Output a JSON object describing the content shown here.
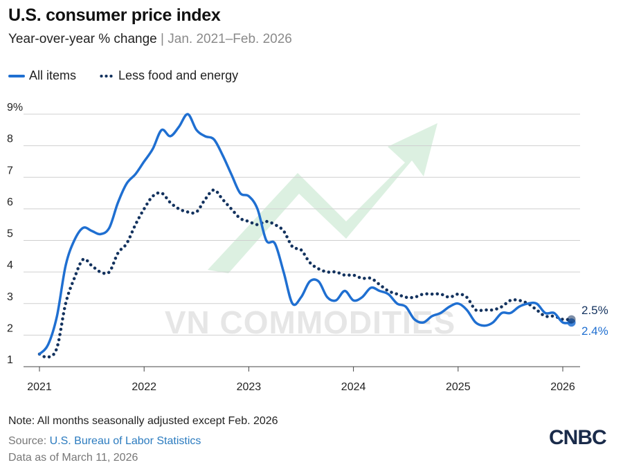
{
  "header": {
    "title": "U.S. consumer price index",
    "subtitle_main": "Year-over-year % change",
    "subtitle_sep": " | ",
    "subtitle_range": "Jan. 2021–Feb. 2026"
  },
  "footer": {
    "note": "Note: All months seasonally adjusted except Feb. 2026",
    "source_label": "Source: ",
    "source_link": "U.S. Bureau of Labor Statistics",
    "as_of": "Data as of March 11, 2026",
    "logo_text": "CNBC"
  },
  "watermark": {
    "text": "VN COMMODITIES"
  },
  "chart_data": {
    "type": "line",
    "title": "U.S. consumer price index",
    "xlabel": "",
    "ylabel": "",
    "ylim": [
      1,
      9
    ],
    "xlim": [
      2021.0,
      2026.2
    ],
    "y_ticks": [
      1,
      2,
      3,
      4,
      5,
      6,
      7,
      8,
      9
    ],
    "y_tick_labels": [
      "1",
      "2",
      "3",
      "4",
      "5",
      "6",
      "7",
      "8",
      "9%"
    ],
    "x_ticks": [
      2021,
      2022,
      2023,
      2024,
      2025,
      2026
    ],
    "x_tick_labels": [
      "2021",
      "2022",
      "2023",
      "2024",
      "2025",
      "2026"
    ],
    "legend_position": "top-left",
    "grid": "horizontal",
    "series": [
      {
        "name": "All items",
        "style": "solid",
        "color": "#1f6fd1",
        "end_label": "2.4%",
        "x": [
          2021.0,
          2021.083,
          2021.167,
          2021.25,
          2021.333,
          2021.417,
          2021.5,
          2021.583,
          2021.667,
          2021.75,
          2021.833,
          2021.917,
          2022.0,
          2022.083,
          2022.167,
          2022.25,
          2022.333,
          2022.417,
          2022.5,
          2022.583,
          2022.667,
          2022.75,
          2022.833,
          2022.917,
          2023.0,
          2023.083,
          2023.167,
          2023.25,
          2023.333,
          2023.417,
          2023.5,
          2023.583,
          2023.667,
          2023.75,
          2023.833,
          2023.917,
          2024.0,
          2024.083,
          2024.167,
          2024.25,
          2024.333,
          2024.417,
          2024.5,
          2024.583,
          2024.667,
          2024.75,
          2024.833,
          2024.917,
          2025.0,
          2025.083,
          2025.167,
          2025.25,
          2025.333,
          2025.417,
          2025.5,
          2025.583,
          2025.667,
          2025.75,
          2025.833,
          2025.917,
          2026.0,
          2026.083
        ],
        "values": [
          1.4,
          1.7,
          2.6,
          4.2,
          5.0,
          5.4,
          5.3,
          5.2,
          5.4,
          6.2,
          6.8,
          7.1,
          7.5,
          7.9,
          8.5,
          8.3,
          8.6,
          9.0,
          8.5,
          8.3,
          8.2,
          7.7,
          7.1,
          6.5,
          6.4,
          6.0,
          5.0,
          4.9,
          4.0,
          3.0,
          3.2,
          3.7,
          3.7,
          3.2,
          3.1,
          3.4,
          3.1,
          3.2,
          3.5,
          3.4,
          3.3,
          3.0,
          2.9,
          2.5,
          2.4,
          2.6,
          2.7,
          2.9,
          3.0,
          2.8,
          2.4,
          2.3,
          2.4,
          2.7,
          2.7,
          2.9,
          3.0,
          3.0,
          2.7,
          2.7,
          2.4,
          2.4
        ]
      },
      {
        "name": "Less food and energy",
        "style": "dotted",
        "color": "#13325e",
        "end_label": "2.5%",
        "x": [
          2021.0,
          2021.083,
          2021.167,
          2021.25,
          2021.333,
          2021.417,
          2021.5,
          2021.583,
          2021.667,
          2021.75,
          2021.833,
          2021.917,
          2022.0,
          2022.083,
          2022.167,
          2022.25,
          2022.333,
          2022.417,
          2022.5,
          2022.583,
          2022.667,
          2022.75,
          2022.833,
          2022.917,
          2023.0,
          2023.083,
          2023.167,
          2023.25,
          2023.333,
          2023.417,
          2023.5,
          2023.583,
          2023.667,
          2023.75,
          2023.833,
          2023.917,
          2024.0,
          2024.083,
          2024.167,
          2024.25,
          2024.333,
          2024.417,
          2024.5,
          2024.583,
          2024.667,
          2024.75,
          2024.833,
          2024.917,
          2025.0,
          2025.083,
          2025.167,
          2025.25,
          2025.333,
          2025.417,
          2025.5,
          2025.583,
          2025.667,
          2025.75,
          2025.833,
          2025.917,
          2026.0,
          2026.083
        ],
        "values": [
          1.4,
          1.3,
          1.6,
          3.0,
          3.8,
          4.4,
          4.2,
          4.0,
          4.0,
          4.6,
          4.9,
          5.5,
          6.0,
          6.4,
          6.5,
          6.2,
          6.0,
          5.9,
          5.9,
          6.3,
          6.6,
          6.3,
          6.0,
          5.7,
          5.6,
          5.5,
          5.6,
          5.5,
          5.3,
          4.8,
          4.7,
          4.3,
          4.1,
          4.0,
          4.0,
          3.9,
          3.9,
          3.8,
          3.8,
          3.6,
          3.4,
          3.3,
          3.2,
          3.2,
          3.3,
          3.3,
          3.3,
          3.2,
          3.3,
          3.2,
          2.8,
          2.8,
          2.8,
          2.9,
          3.1,
          3.1,
          3.0,
          2.8,
          2.6,
          2.6,
          2.5,
          2.5
        ]
      }
    ]
  }
}
